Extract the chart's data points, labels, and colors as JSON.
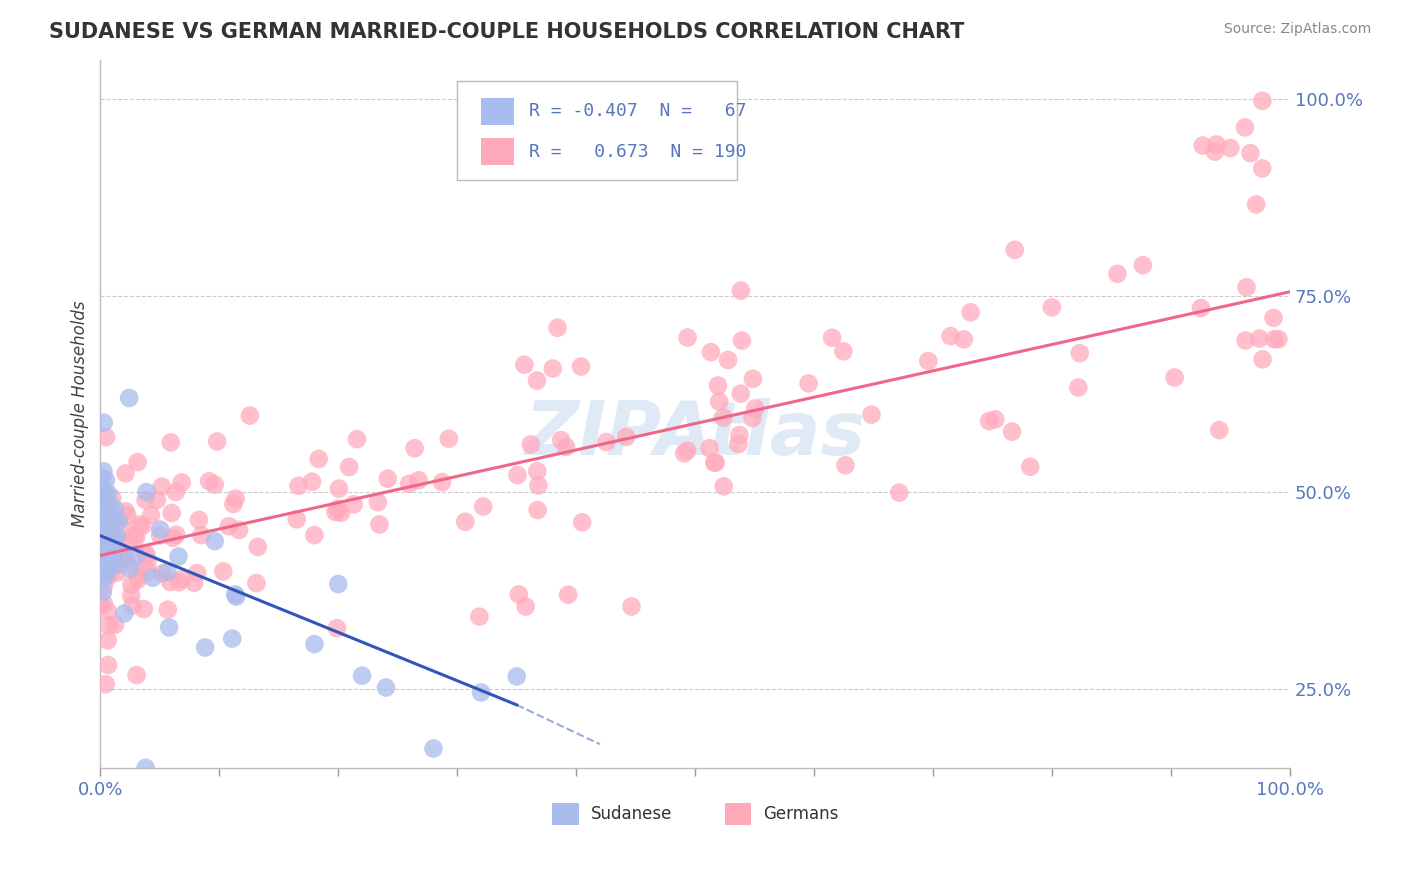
{
  "title": "SUDANESE VS GERMAN MARRIED-COUPLE HOUSEHOLDS CORRELATION CHART",
  "source": "Source: ZipAtlas.com",
  "ylabel": "Married-couple Households",
  "y_tick_vals": [
    0.25,
    0.5,
    0.75,
    1.0
  ],
  "y_tick_labels": [
    "25.0%",
    "50.0%",
    "75.0%",
    "100.0%"
  ],
  "x_tick_labels": [
    "0.0%",
    "100.0%"
  ],
  "color_sudanese": "#AABBEE",
  "color_german": "#FFAABB",
  "color_line_sudanese": "#3355BB",
  "color_line_german": "#EE6688",
  "watermark_text": "ZIPAtlas",
  "watermark_color": "#C8D8F0",
  "background_color": "#FFFFFF",
  "grid_color": "#CCCCCC",
  "tick_color": "#5577BB",
  "legend_r1_val": "-0.407",
  "legend_n1_val": "67",
  "legend_r2_val": "0.673",
  "legend_n2_val": "190",
  "xlim": [
    0.0,
    1.0
  ],
  "ylim": [
    0.15,
    1.05
  ],
  "sud_line_x0": 0.0,
  "sud_line_y0": 0.445,
  "sud_line_x1": 0.35,
  "sud_line_y1": 0.23,
  "sud_line_dash_x1": 0.42,
  "sud_line_dash_y1": 0.18,
  "ger_line_x0": 0.0,
  "ger_line_y0": 0.42,
  "ger_line_x1": 1.0,
  "ger_line_y1": 0.755
}
